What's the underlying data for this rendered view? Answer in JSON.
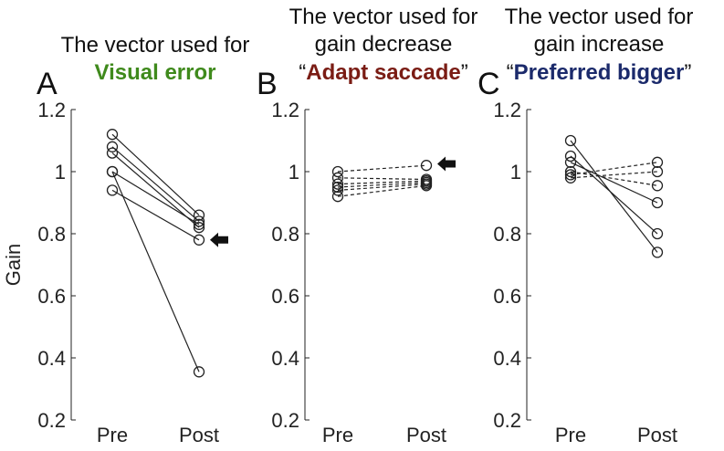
{
  "colors": {
    "visual_error": "#3f8a1c",
    "adapt_saccade": "#7a1c14",
    "preferred_bigger": "#1b2a6b"
  },
  "panels": [
    {
      "letter": "A",
      "title_lines": [
        "The vector used for"
      ],
      "highlight": "Visual error",
      "quoted": false
    },
    {
      "letter": "B",
      "title_lines": [
        "The vector used for",
        "gain decrease"
      ],
      "highlight": "Adapt saccade",
      "quoted": true
    },
    {
      "letter": "C",
      "title_lines": [
        "The vector used for",
        "gain increase"
      ],
      "highlight": "Preferred bigger",
      "quoted": true
    }
  ],
  "quote_open": "“",
  "quote_close": "”",
  "chart_data": [
    {
      "type": "line",
      "panel": "A",
      "x": [
        "Pre",
        "Post"
      ],
      "ylabel": "Gain",
      "ylim": [
        0.2,
        1.2
      ],
      "yticks": [
        "0.2",
        "0.4",
        "0.6",
        "0.8",
        "1",
        "1.2"
      ],
      "series": [
        {
          "values": [
            1.12,
            0.86
          ],
          "style": "solid"
        },
        {
          "values": [
            1.08,
            0.84
          ],
          "style": "solid"
        },
        {
          "values": [
            1.06,
            0.82
          ],
          "style": "solid"
        },
        {
          "values": [
            1.0,
            0.83
          ],
          "style": "solid"
        },
        {
          "values": [
            0.94,
            0.78
          ],
          "style": "solid"
        },
        {
          "values": [
            1.0,
            0.355
          ],
          "style": "solid"
        }
      ],
      "arrow_at": {
        "x": "Post",
        "y": 0.78
      }
    },
    {
      "type": "line",
      "panel": "B",
      "x": [
        "Pre",
        "Post"
      ],
      "ylim": [
        0.2,
        1.2
      ],
      "yticks": [
        "0.2",
        "0.4",
        "0.6",
        "0.8",
        "1",
        "1.2"
      ],
      "series": [
        {
          "values": [
            1.0,
            1.02
          ],
          "style": "dashed"
        },
        {
          "values": [
            0.98,
            0.975
          ],
          "style": "dashed"
        },
        {
          "values": [
            0.96,
            0.97
          ],
          "style": "dashed"
        },
        {
          "values": [
            0.95,
            0.965
          ],
          "style": "dashed"
        },
        {
          "values": [
            0.94,
            0.96
          ],
          "style": "dashed"
        },
        {
          "values": [
            0.92,
            0.955
          ],
          "style": "dashed"
        }
      ],
      "arrow_at": {
        "x": "Post",
        "y": 1.025
      }
    },
    {
      "type": "line",
      "panel": "C",
      "x": [
        "Pre",
        "Post"
      ],
      "ylim": [
        0.2,
        1.2
      ],
      "yticks": [
        "0.2",
        "0.4",
        "0.6",
        "0.8",
        "1",
        "1.2"
      ],
      "series": [
        {
          "values": [
            1.1,
            0.74
          ],
          "style": "solid"
        },
        {
          "values": [
            1.05,
            0.8
          ],
          "style": "solid"
        },
        {
          "values": [
            1.03,
            0.9
          ],
          "style": "solid"
        },
        {
          "values": [
            1.0,
            0.955
          ],
          "style": "dashed"
        },
        {
          "values": [
            0.99,
            1.03
          ],
          "style": "dashed"
        },
        {
          "values": [
            0.98,
            1.0
          ],
          "style": "dashed"
        }
      ]
    }
  ]
}
